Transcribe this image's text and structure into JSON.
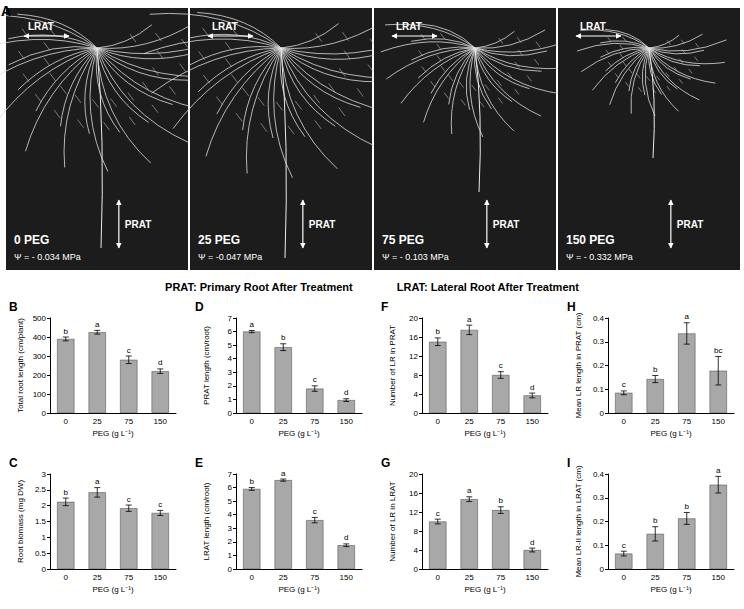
{
  "panel_a": {
    "label": "A",
    "prat_label": "PRAT",
    "lrat_label": "LRAT",
    "images": [
      {
        "treatment": "0 PEG",
        "psi": "Ψ = - 0.034 MPa"
      },
      {
        "treatment": "25 PEG",
        "psi": "Ψ = -0.047 MPa"
      },
      {
        "treatment": "75 PEG",
        "psi": "Ψ = - 0.103 MPa"
      },
      {
        "treatment": "150 PEG",
        "psi": "Ψ = - 0.332 MPa"
      }
    ],
    "legend_text": [
      "PRAT: Primary Root After Treatment",
      "LRAT: Lateral Root After Treatment"
    ]
  },
  "chart_data": [
    {
      "type": "bar",
      "title": "B",
      "categories": [
        "0",
        "25",
        "75",
        "150"
      ],
      "values": [
        390,
        425,
        280,
        220
      ],
      "errors": [
        10,
        10,
        20,
        12
      ],
      "letters": [
        "b",
        "a",
        "c",
        "d"
      ],
      "color": "#a8a8a8",
      "xlabel": "PEG (g L⁻¹)",
      "ylabel": "Total root length (cm/plant)",
      "ylim": [
        0,
        500
      ],
      "yticks": [
        0,
        100,
        200,
        300,
        400,
        500
      ],
      "grid": false
    },
    {
      "type": "bar",
      "title": "D",
      "categories": [
        "0",
        "25",
        "75",
        "150"
      ],
      "values": [
        6.0,
        4.85,
        1.8,
        0.95
      ],
      "errors": [
        0.08,
        0.25,
        0.2,
        0.1
      ],
      "letters": [
        "a",
        "b",
        "c",
        "d"
      ],
      "color": "#a8a8a8",
      "xlabel": "PEG (g L⁻¹)",
      "ylabel": "PRAT length (cm/root)",
      "ylim": [
        0,
        7
      ],
      "yticks": [
        0,
        1,
        2,
        3,
        4,
        5,
        6,
        7
      ],
      "grid": false
    },
    {
      "type": "bar",
      "title": "F",
      "categories": [
        "0",
        "25",
        "75",
        "150"
      ],
      "values": [
        15,
        17.5,
        8,
        3.7
      ],
      "errors": [
        0.8,
        1,
        0.7,
        0.5
      ],
      "letters": [
        "b",
        "a",
        "c",
        "d"
      ],
      "color": "#a8a8a8",
      "xlabel": "PEG (g L⁻¹)",
      "ylabel": "Number of LR in PRAT",
      "ylim": [
        0,
        20
      ],
      "yticks": [
        0,
        4,
        8,
        12,
        16,
        20
      ],
      "grid": false
    },
    {
      "type": "bar",
      "title": "H",
      "categories": [
        "0",
        "25",
        "75",
        "150"
      ],
      "values": [
        0.085,
        0.143,
        0.335,
        0.178
      ],
      "errors": [
        0.008,
        0.015,
        0.045,
        0.06
      ],
      "letters": [
        "c",
        "b",
        "a",
        "bc"
      ],
      "color": "#a8a8a8",
      "xlabel": "PEG (g L⁻¹)",
      "ylabel": "Mean LR length in PRAT (cm)",
      "ylim": [
        0,
        0.4
      ],
      "yticks": [
        0,
        0.1,
        0.2,
        0.3,
        0.4
      ],
      "grid": false
    },
    {
      "type": "bar",
      "title": "C",
      "categories": [
        "0",
        "25",
        "75",
        "150"
      ],
      "values": [
        2.12,
        2.42,
        1.92,
        1.77
      ],
      "errors": [
        0.12,
        0.15,
        0.1,
        0.08
      ],
      "letters": [
        "b",
        "a",
        "c",
        "c"
      ],
      "color": "#a8a8a8",
      "xlabel": "PEG (g L⁻¹)",
      "ylabel": "Root biomass (mg DW)",
      "ylim": [
        0,
        3
      ],
      "yticks": [
        0,
        0.5,
        1,
        1.5,
        2,
        2.5,
        3
      ],
      "grid": false
    },
    {
      "type": "bar",
      "title": "E",
      "categories": [
        "0",
        "25",
        "75",
        "150"
      ],
      "values": [
        5.9,
        6.55,
        3.6,
        1.75
      ],
      "errors": [
        0.1,
        0.08,
        0.2,
        0.1
      ],
      "letters": [
        "b",
        "a",
        "c",
        "d"
      ],
      "color": "#a8a8a8",
      "xlabel": "PEG (g L⁻¹)",
      "ylabel": "LRAT length (cm/root)",
      "ylim": [
        0,
        7
      ],
      "yticks": [
        0,
        1,
        2,
        3,
        4,
        5,
        6,
        7
      ],
      "grid": false
    },
    {
      "type": "bar",
      "title": "G",
      "categories": [
        "0",
        "25",
        "75",
        "150"
      ],
      "values": [
        10,
        14.7,
        12.4,
        4
      ],
      "errors": [
        0.5,
        0.5,
        0.7,
        0.4
      ],
      "letters": [
        "c",
        "a",
        "b",
        "d"
      ],
      "color": "#a8a8a8",
      "xlabel": "PEG (g L⁻¹)",
      "ylabel": "Number of LR in LRAT",
      "ylim": [
        0,
        20
      ],
      "yticks": [
        0,
        4,
        8,
        12,
        16,
        20
      ],
      "grid": false
    },
    {
      "type": "bar",
      "title": "I",
      "categories": [
        "0",
        "25",
        "75",
        "150"
      ],
      "values": [
        0.065,
        0.148,
        0.213,
        0.355
      ],
      "errors": [
        0.01,
        0.03,
        0.025,
        0.035
      ],
      "letters": [
        "c",
        "b",
        "b",
        "a"
      ],
      "color": "#a8a8a8",
      "xlabel": "PEG (g L⁻¹)",
      "ylabel": "Mean LR-II length in LRAT (cm)",
      "ylim": [
        0,
        0.4
      ],
      "yticks": [
        0,
        0.1,
        0.2,
        0.3,
        0.4
      ],
      "grid": false
    }
  ]
}
